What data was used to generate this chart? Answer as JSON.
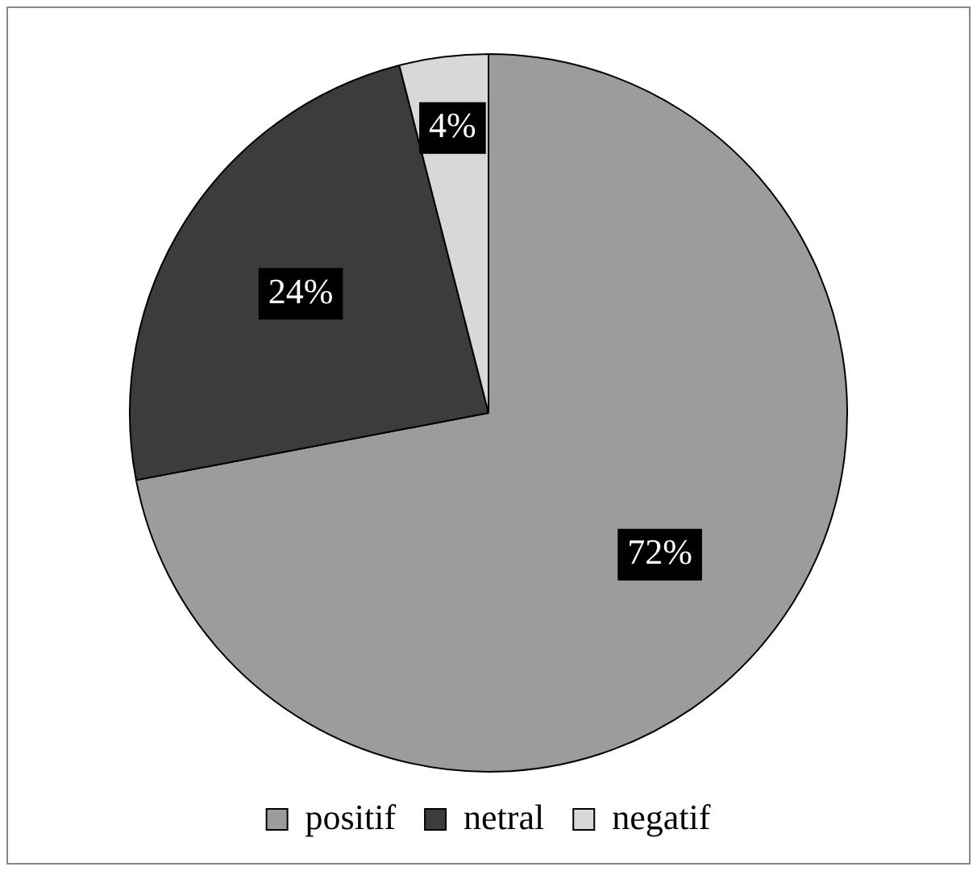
{
  "chart_data": {
    "type": "pie",
    "categories": [
      "positif",
      "netral",
      "negatif"
    ],
    "values": [
      72,
      24,
      4
    ],
    "value_labels": [
      "72%",
      "24%",
      "4%"
    ],
    "colors": [
      "#9c9c9c",
      "#3c3c3c",
      "#d8d8d8"
    ],
    "legend": "bottom"
  }
}
